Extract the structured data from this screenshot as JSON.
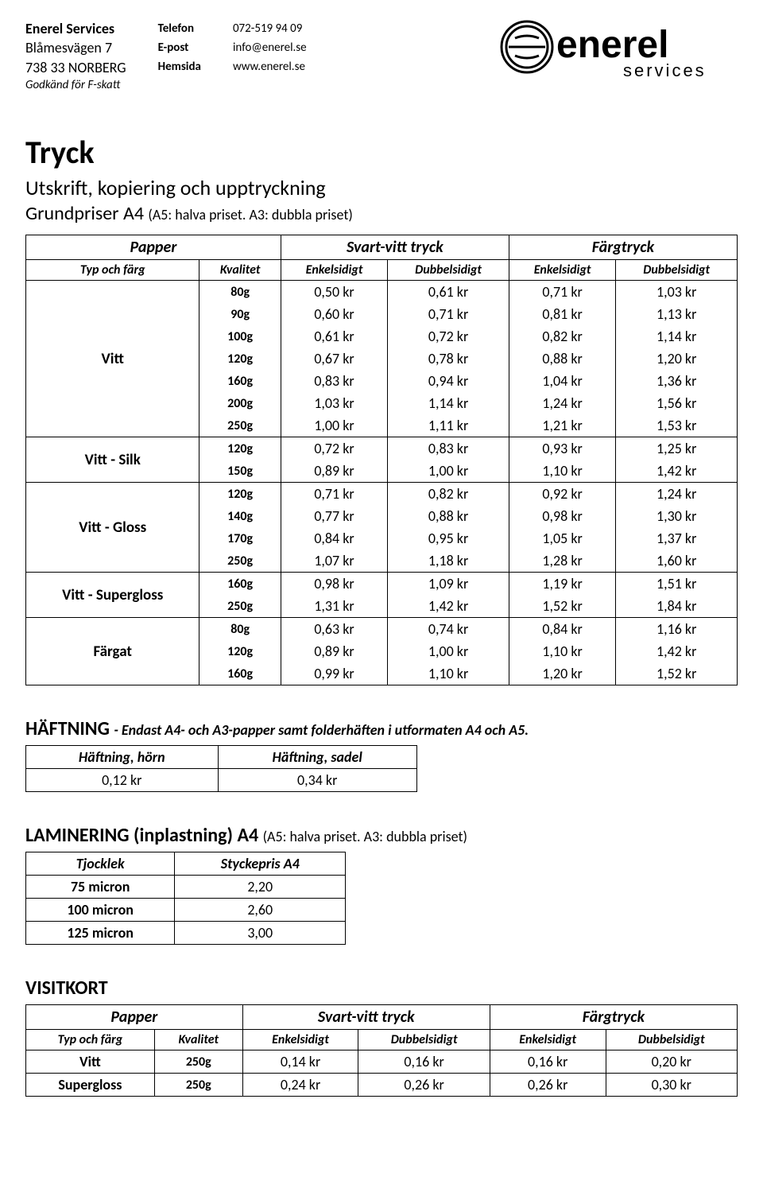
{
  "company": {
    "name": "Enerel Services",
    "address1": "Blåmesvägen 7",
    "address2": "738 33 NORBERG",
    "fskatt": "Godkänd för F-skatt"
  },
  "contact": {
    "labels": {
      "phone": "Telefon",
      "email": "E-post",
      "web": "Hemsida"
    },
    "values": {
      "phone": "072-519 94 09",
      "email": "info@enerel.se",
      "web": "www.enerel.se"
    }
  },
  "logo": {
    "top": "enerel",
    "bottom": "services"
  },
  "title": "Tryck",
  "subtitle1": "Utskrift, kopiering och upptryckning",
  "subtitle2_main": "Grundpriser A4 ",
  "subtitle2_paren": "(A5: halva priset. A3: dubbla priset)",
  "price_table": {
    "header1": [
      "Papper",
      "Svart-vitt tryck",
      "Färgtryck"
    ],
    "header2": [
      "Typ och färg",
      "Kvalitet",
      "Enkelsidigt",
      "Dubbelsidigt",
      "Enkelsidigt",
      "Dubbelsidigt"
    ],
    "groups": [
      {
        "type": "Vitt",
        "rows": [
          [
            "80g",
            "0,50 kr",
            "0,61 kr",
            "0,71 kr",
            "1,03 kr"
          ],
          [
            "90g",
            "0,60 kr",
            "0,71 kr",
            "0,81 kr",
            "1,13 kr"
          ],
          [
            "100g",
            "0,61 kr",
            "0,72 kr",
            "0,82 kr",
            "1,14 kr"
          ],
          [
            "120g",
            "0,67 kr",
            "0,78 kr",
            "0,88 kr",
            "1,20 kr"
          ],
          [
            "160g",
            "0,83 kr",
            "0,94 kr",
            "1,04 kr",
            "1,36 kr"
          ],
          [
            "200g",
            "1,03 kr",
            "1,14 kr",
            "1,24 kr",
            "1,56 kr"
          ],
          [
            "250g",
            "1,00 kr",
            "1,11 kr",
            "1,21 kr",
            "1,53 kr"
          ]
        ]
      },
      {
        "type": "Vitt - Silk",
        "rows": [
          [
            "120g",
            "0,72 kr",
            "0,83 kr",
            "0,93 kr",
            "1,25 kr"
          ],
          [
            "150g",
            "0,89 kr",
            "1,00 kr",
            "1,10 kr",
            "1,42 kr"
          ]
        ]
      },
      {
        "type": "Vitt - Gloss",
        "rows": [
          [
            "120g",
            "0,71 kr",
            "0,82 kr",
            "0,92 kr",
            "1,24 kr"
          ],
          [
            "140g",
            "0,77 kr",
            "0,88 kr",
            "0,98 kr",
            "1,30 kr"
          ],
          [
            "170g",
            "0,84 kr",
            "0,95 kr",
            "1,05 kr",
            "1,37 kr"
          ],
          [
            "250g",
            "1,07 kr",
            "1,18 kr",
            "1,28 kr",
            "1,60 kr"
          ]
        ]
      },
      {
        "type": "Vitt - Supergloss",
        "rows": [
          [
            "160g",
            "0,98 kr",
            "1,09 kr",
            "1,19 kr",
            "1,51 kr"
          ],
          [
            "250g",
            "1,31 kr",
            "1,42 kr",
            "1,52 kr",
            "1,84 kr"
          ]
        ]
      },
      {
        "type": "Färgat",
        "rows": [
          [
            "80g",
            "0,63 kr",
            "0,74 kr",
            "0,84 kr",
            "1,16 kr"
          ],
          [
            "120g",
            "0,89 kr",
            "1,00 kr",
            "1,10 kr",
            "1,42 kr"
          ],
          [
            "160g",
            "0,99 kr",
            "1,10 kr",
            "1,20 kr",
            "1,52 kr"
          ]
        ]
      }
    ]
  },
  "haftning": {
    "title": "HÄFTNING ",
    "note": "- Endast A4- och A3-papper samt folderhäften i utformaten A4 och A5.",
    "headers": [
      "Häftning, hörn",
      "Häftning, sadel"
    ],
    "values": [
      "0,12 kr",
      "0,34 kr"
    ]
  },
  "laminering": {
    "title": "LAMINERING (inplastning) A4 ",
    "paren": "(A5: halva priset. A3: dubbla priset)",
    "headers": [
      "Tjocklek",
      "Styckepris A4"
    ],
    "rows": [
      [
        "75 micron",
        "2,20"
      ],
      [
        "100 micron",
        "2,60"
      ],
      [
        "125 micron",
        "3,00"
      ]
    ]
  },
  "visitkort": {
    "title": "VISITKORT",
    "header1": [
      "Papper",
      "Svart-vitt tryck",
      "Färgtryck"
    ],
    "header2": [
      "Typ och färg",
      "Kvalitet",
      "Enkelsidigt",
      "Dubbelsidigt",
      "Enkelsidigt",
      "Dubbelsidigt"
    ],
    "rows": [
      {
        "type": "Vitt",
        "cells": [
          "250g",
          "0,14 kr",
          "0,16 kr",
          "0,16 kr",
          "0,20 kr"
        ]
      },
      {
        "type": "Supergloss",
        "cells": [
          "250g",
          "0,24 kr",
          "0,26 kr",
          "0,26 kr",
          "0,30 kr"
        ]
      }
    ]
  }
}
